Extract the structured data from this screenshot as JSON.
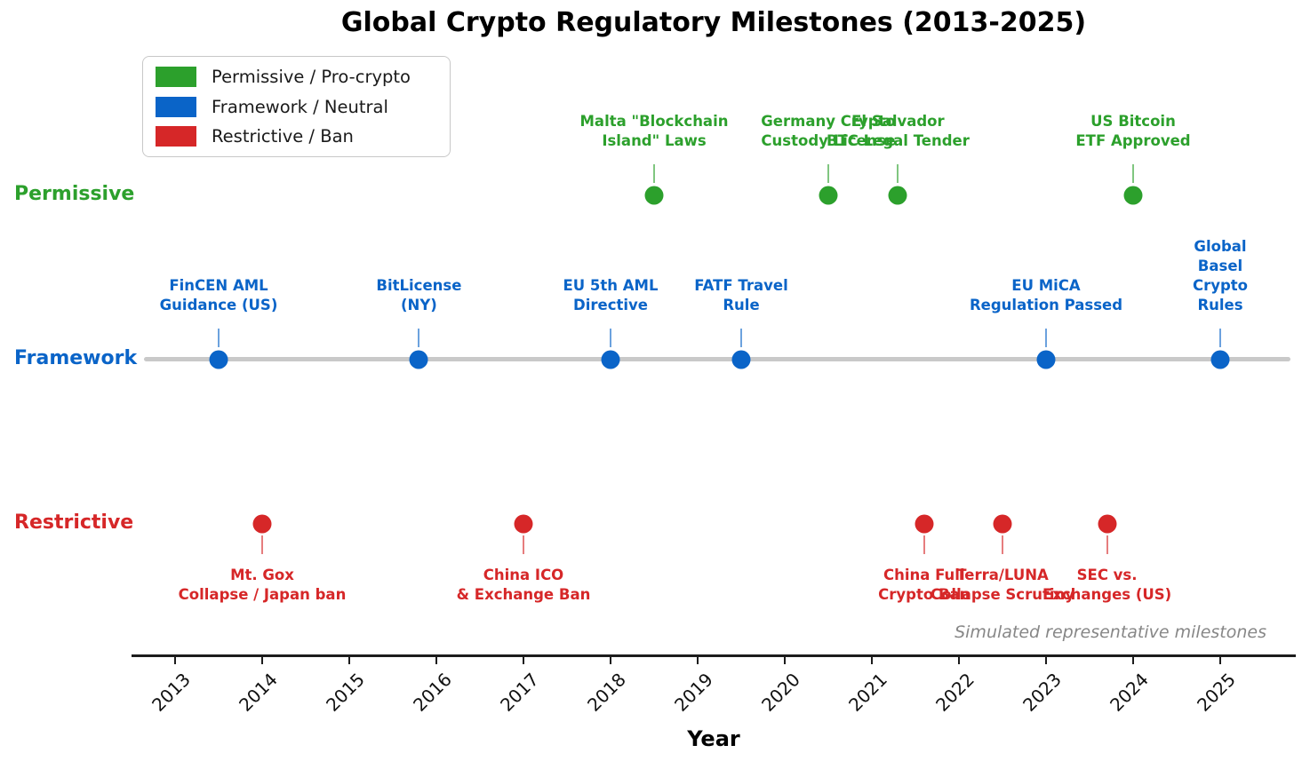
{
  "title": "Global Crypto Regulatory Milestones (2013-2025)",
  "legend": {
    "items": [
      {
        "label": "Permissive / Pro-crypto",
        "color": "#2ca02c"
      },
      {
        "label": "Framework / Neutral",
        "color": "#0a64c8"
      },
      {
        "label": "Restrictive / Ban",
        "color": "#d62728"
      }
    ]
  },
  "row_labels": [
    {
      "label": "Permissive",
      "color": "#2ca02c"
    },
    {
      "label": "Framework",
      "color": "#0a64c8"
    },
    {
      "label": "Restrictive",
      "color": "#d62728"
    }
  ],
  "annotation": "Simulated representative milestones",
  "xlabel": "Year",
  "chart_data": {
    "type": "scatter",
    "subtype": "timeline",
    "title": "Global Crypto Regulatory Milestones (2013-2025)",
    "xlabel": "Year",
    "x_ticks": [
      2013,
      2014,
      2015,
      2016,
      2017,
      2018,
      2019,
      2020,
      2021,
      2022,
      2023,
      2024,
      2025
    ],
    "xlim": [
      2012.5,
      2025.85
    ],
    "rows": [
      "Permissive",
      "Framework",
      "Restrictive"
    ],
    "baseline_row": "Framework",
    "legend_position": "upper left",
    "grid": false,
    "series": [
      {
        "name": "Permissive / Pro-crypto",
        "row": "Permissive",
        "color": "#2ca02c",
        "label_position": "above",
        "points": [
          {
            "year": 2018.5,
            "label": "Malta \"Blockchain\nIsland\" Laws"
          },
          {
            "year": 2020.5,
            "label": "Germany Crypto\nCustody License"
          },
          {
            "year": 2021.3,
            "label": "El Salvador\nBTC Legal Tender"
          },
          {
            "year": 2024.0,
            "label": "US Bitcoin\nETF Approved"
          }
        ]
      },
      {
        "name": "Framework / Neutral",
        "row": "Framework",
        "color": "#0a64c8",
        "label_position": "above",
        "points": [
          {
            "year": 2013.5,
            "label": "FinCEN AML\nGuidance (US)"
          },
          {
            "year": 2015.8,
            "label": "BitLicense\n(NY)"
          },
          {
            "year": 2018.0,
            "label": "EU 5th AML\nDirective"
          },
          {
            "year": 2019.5,
            "label": "FATF Travel\nRule"
          },
          {
            "year": 2023.0,
            "label": "EU MiCA\nRegulation Passed"
          },
          {
            "year": 2025.0,
            "label": "Global Basel\nCrypto Rules"
          }
        ]
      },
      {
        "name": "Restrictive / Ban",
        "row": "Restrictive",
        "color": "#d62728",
        "label_position": "below",
        "points": [
          {
            "year": 2014.0,
            "label": "Mt. Gox\nCollapse / Japan ban"
          },
          {
            "year": 2017.0,
            "label": "China ICO\n& Exchange Ban"
          },
          {
            "year": 2021.6,
            "label": "China Full\nCrypto Ban"
          },
          {
            "year": 2022.5,
            "label": "Terra/LUNA\nCollapse Scrutiny"
          },
          {
            "year": 2023.7,
            "label": "SEC vs.\nExchanges (US)"
          }
        ]
      }
    ]
  }
}
